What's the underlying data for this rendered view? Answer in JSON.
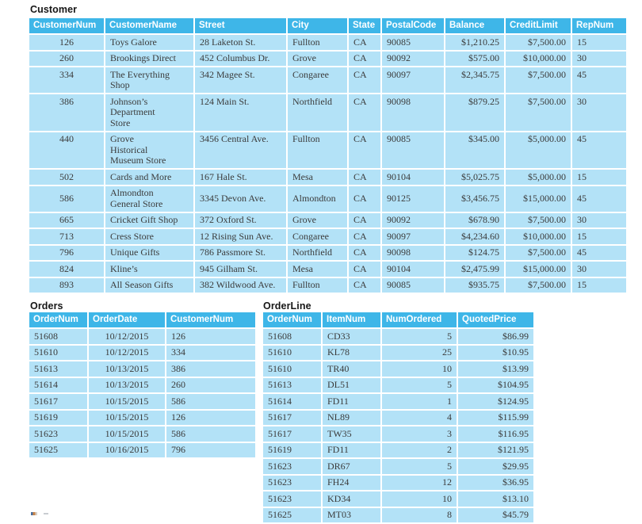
{
  "colors": {
    "header_bg": "#3eb6e8",
    "row_bg": "#b3e2f7",
    "header_text": "#ffffff",
    "data_text": "#3b3b3b",
    "title_text": "#161616"
  },
  "tables": {
    "customer": {
      "title": "Customer",
      "columns": [
        "CustomerNum",
        "CustomerName",
        "Street",
        "City",
        "State",
        "PostalCode",
        "Balance",
        "CreditLimit",
        "RepNum"
      ],
      "rows": [
        [
          "126",
          "Toys Galore",
          "28 Laketon St.",
          "Fullton",
          "CA",
          "90085",
          "$1,210.25",
          "$7,500.00",
          "15"
        ],
        [
          "260",
          "Brookings Direct",
          "452 Columbus Dr.",
          "Grove",
          "CA",
          "90092",
          "$575.00",
          "$10,000.00",
          "30"
        ],
        [
          "334",
          "The Everything\nShop",
          "342 Magee St.",
          "Congaree",
          "CA",
          "90097",
          "$2,345.75",
          "$7,500.00",
          "45"
        ],
        [
          "386",
          "Johnson’s\nDepartment\nStore",
          "124 Main St.",
          "Northfield",
          "CA",
          "90098",
          "$879.25",
          "$7,500.00",
          "30"
        ],
        [
          "440",
          "Grove\nHistorical\nMuseum Store",
          "3456 Central Ave.",
          "Fullton",
          "CA",
          "90085",
          "$345.00",
          "$5,000.00",
          "45"
        ],
        [
          "502",
          "Cards and More",
          "167 Hale St.",
          "Mesa",
          "CA",
          "90104",
          "$5,025.75",
          "$5,000.00",
          "15"
        ],
        [
          "586",
          "Almondton\nGeneral Store",
          "3345 Devon Ave.",
          "Almondton",
          "CA",
          "90125",
          "$3,456.75",
          "$15,000.00",
          "45"
        ],
        [
          "665",
          "Cricket Gift Shop",
          "372 Oxford St.",
          "Grove",
          "CA",
          "90092",
          "$678.90",
          "$7,500.00",
          "30"
        ],
        [
          "713",
          "Cress Store",
          "12 Rising Sun Ave.",
          "Congaree",
          "CA",
          "90097",
          "$4,234.60",
          "$10,000.00",
          "15"
        ],
        [
          "796",
          "Unique Gifts",
          "786 Passmore St.",
          "Northfield",
          "CA",
          "90098",
          "$124.75",
          "$7,500.00",
          "45"
        ],
        [
          "824",
          "Kline’s",
          "945 Gilham St.",
          "Mesa",
          "CA",
          "90104",
          "$2,475.99",
          "$15,000.00",
          "30"
        ],
        [
          "893",
          "All Season Gifts",
          "382 Wildwood Ave.",
          "Fullton",
          "CA",
          "90085",
          "$935.75",
          "$7,500.00",
          "15"
        ]
      ]
    },
    "orders": {
      "title": "Orders",
      "columns": [
        "OrderNum",
        "OrderDate",
        "CustomerNum"
      ],
      "rows": [
        [
          "51608",
          "10/12/2015",
          "126"
        ],
        [
          "51610",
          "10/12/2015",
          "334"
        ],
        [
          "51613",
          "10/13/2015",
          "386"
        ],
        [
          "51614",
          "10/13/2015",
          "260"
        ],
        [
          "51617",
          "10/15/2015",
          "586"
        ],
        [
          "51619",
          "10/15/2015",
          "126"
        ],
        [
          "51623",
          "10/15/2015",
          "586"
        ],
        [
          "51625",
          "10/16/2015",
          "796"
        ]
      ]
    },
    "order_line": {
      "title": "OrderLine",
      "columns": [
        "OrderNum",
        "ItemNum",
        "NumOrdered",
        "QuotedPrice"
      ],
      "rows": [
        [
          "51608",
          "CD33",
          "5",
          "$86.99"
        ],
        [
          "51610",
          "KL78",
          "25",
          "$10.95"
        ],
        [
          "51610",
          "TR40",
          "10",
          "$13.99"
        ],
        [
          "51613",
          "DL51",
          "5",
          "$104.95"
        ],
        [
          "51614",
          "FD11",
          "1",
          "$124.95"
        ],
        [
          "51617",
          "NL89",
          "4",
          "$115.99"
        ],
        [
          "51617",
          "TW35",
          "3",
          "$116.95"
        ],
        [
          "51619",
          "FD11",
          "2",
          "$121.95"
        ],
        [
          "51623",
          "DR67",
          "5",
          "$29.95"
        ],
        [
          "51623",
          "FH24",
          "12",
          "$36.95"
        ],
        [
          "51623",
          "KD34",
          "10",
          "$13.10"
        ],
        [
          "51625",
          "MT03",
          "8",
          "$45.79"
        ]
      ]
    }
  }
}
